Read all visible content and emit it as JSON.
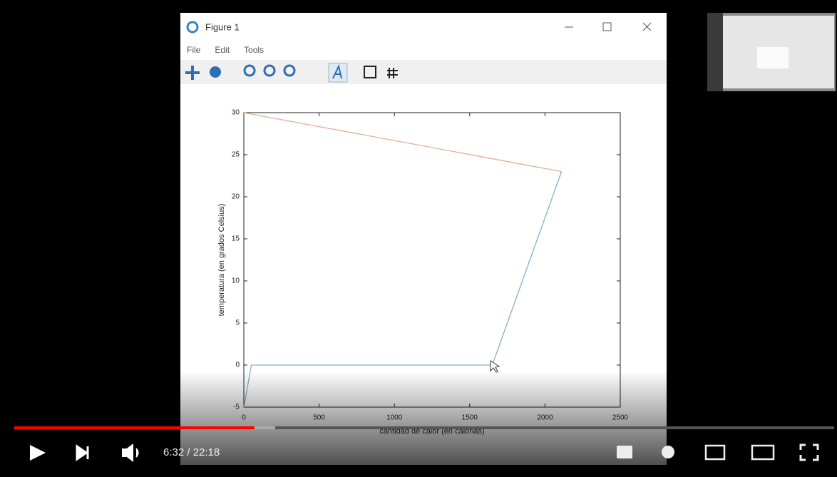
{
  "window": {
    "title": "Figure 1",
    "menu": [
      "File",
      "Edit",
      "Tools"
    ]
  },
  "chart_data": {
    "type": "line",
    "xlabel": "cantidad de calor (en calorias)",
    "ylabel": "temperatura (en grados Celsius)",
    "series": [
      {
        "color": "#7fb0cf",
        "x": [
          0,
          50,
          1650,
          2110
        ],
        "values": [
          -5,
          0,
          0,
          23
        ]
      },
      {
        "color": "#e3ad98",
        "x": [
          0,
          2110
        ],
        "values": [
          30,
          23
        ]
      }
    ],
    "xlim": [
      0,
      2500
    ],
    "xticks": [
      0,
      500,
      1000,
      1500,
      2000,
      2500
    ],
    "ylim": [
      -5,
      30
    ],
    "yticks": [
      -5,
      0,
      5,
      10,
      15,
      20,
      25,
      30
    ]
  },
  "player": {
    "time": "6:32 / 22:18"
  }
}
